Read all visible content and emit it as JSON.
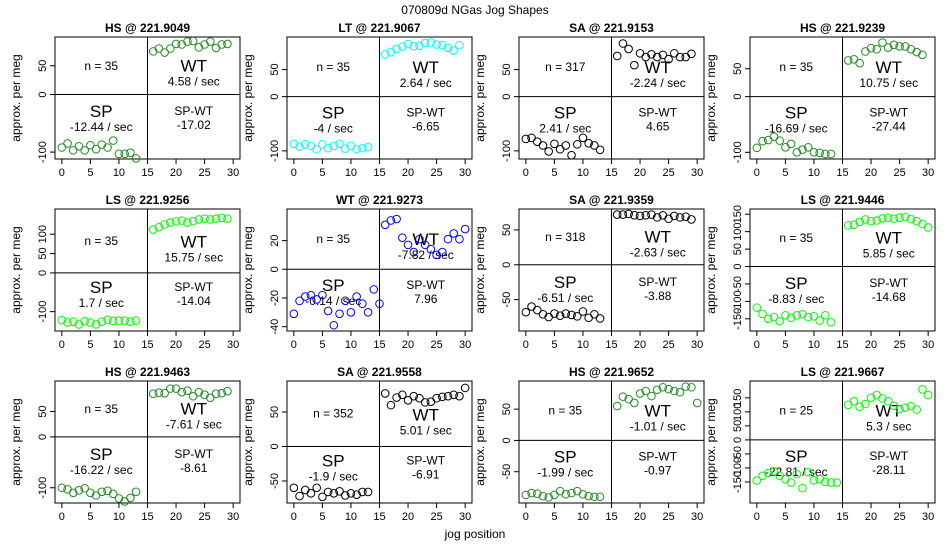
{
  "figure": {
    "title": "070809d   NGas Jog Shapes",
    "xlabel": "jog position",
    "ylabel": "approx. per meg",
    "xticks": [
      0,
      5,
      10,
      15,
      20,
      25,
      30
    ],
    "sp_label": "SP",
    "wt_label": "WT",
    "diff_label": "SP-WT"
  },
  "chart_data": [
    {
      "type": "scatter",
      "title": "HS @ 221.9049",
      "color": "#228b22",
      "n": "n = 35",
      "sp_rate": "-12.44 / sec",
      "wt_rate": "4.58 / sec",
      "diff": "-17.02",
      "ylim": [
        -112,
        100
      ],
      "yticks": [
        -100,
        0,
        50
      ],
      "sp": [
        -92,
        -85,
        -97,
        -90,
        -97,
        -88,
        -95,
        -87,
        -92,
        -80,
        -103,
        -103,
        -101,
        -111
      ],
      "wt": [
        75,
        80,
        73,
        80,
        88,
        87,
        92,
        93,
        82,
        87,
        92,
        81,
        87,
        88
      ]
    },
    {
      "type": "scatter",
      "title": "LT @ 221.9067",
      "color": "#00ffff",
      "n": "n = 35",
      "sp_rate": "-4 / sec",
      "wt_rate": "2.64 / sec",
      "diff": "-6.65",
      "ylim": [
        -115,
        110
      ],
      "yticks": [
        -100,
        0,
        50
      ],
      "sp": [
        -87,
        -92,
        -88,
        -91,
        -97,
        -88,
        -95,
        -91,
        -87,
        -96,
        -91,
        -97,
        -95,
        -93
      ],
      "wt": [
        78,
        82,
        88,
        92,
        97,
        93,
        94,
        99,
        100,
        96,
        95,
        90,
        85,
        95
      ]
    },
    {
      "type": "scatter",
      "title": "SA @ 221.9153",
      "color": "#000000",
      "n": "n = 317",
      "sp_rate": "2.41 / sec",
      "wt_rate": "-2.24 / sec",
      "diff": "4.65",
      "ylim": [
        -115,
        110
      ],
      "yticks": [
        -100,
        0,
        50
      ],
      "sp": [
        -78,
        -76,
        -83,
        -90,
        -101,
        -87,
        -97,
        -90,
        -108,
        -88,
        -76,
        -86,
        -90,
        -98
      ],
      "wt": [
        75,
        98,
        88,
        58,
        80,
        73,
        78,
        73,
        77,
        69,
        80,
        73,
        73,
        79
      ]
    },
    {
      "type": "scatter",
      "title": "HS @ 221.9239",
      "color": "#228b22",
      "n": "n = 35",
      "sp_rate": "-16.69 / sec",
      "wt_rate": "10.75 / sec",
      "diff": "-27.44",
      "ylim": [
        -112,
        107
      ],
      "yticks": [
        -100,
        0,
        50
      ],
      "sp": [
        -92,
        -80,
        -78,
        -72,
        -79,
        -91,
        -85,
        -100,
        -95,
        -91,
        -100,
        -101,
        -103,
        -103
      ],
      "wt": [
        65,
        67,
        60,
        81,
        87,
        85,
        97,
        88,
        93,
        90,
        90,
        85,
        80,
        75
      ]
    },
    {
      "type": "scatter",
      "title": "LS @ 221.9256",
      "color": "#00ff00",
      "n": "n = 35",
      "sp_rate": "1.7 / sec",
      "wt_rate": "15.75 / sec",
      "diff": "-14.04",
      "ylim": [
        -150,
        165
      ],
      "yticks": [
        -100,
        0,
        50,
        100
      ],
      "sp": [
        -122,
        -128,
        -126,
        -133,
        -125,
        -128,
        -133,
        -126,
        -121,
        -124,
        -123,
        -123,
        -126,
        -123
      ],
      "wt": [
        112,
        118,
        125,
        130,
        133,
        135,
        130,
        134,
        138,
        140,
        138,
        140,
        142,
        140
      ]
    },
    {
      "type": "scatter",
      "title": "WT @ 221.9273",
      "color": "#0000ff",
      "n": "n = 35",
      "sp_rate": "-0.14 / sec",
      "wt_rate": "-7.82 / sec",
      "diff": "7.96",
      "ylim": [
        -43,
        42
      ],
      "yticks": [
        -40,
        -20,
        0,
        20
      ],
      "sp": [
        -31,
        -22,
        -19,
        -18,
        -21,
        -18,
        -29,
        -39,
        -31,
        -22,
        -30,
        -19,
        -24,
        -30,
        -14,
        -24
      ],
      "wt": [
        31,
        34,
        35,
        22,
        17,
        12,
        21,
        17,
        14,
        10,
        12,
        21,
        25,
        21,
        28
      ]
    },
    {
      "type": "scatter",
      "title": "SA @ 221.9359",
      "color": "#000000",
      "n": "n = 318",
      "sp_rate": "-6.51 / sec",
      "wt_rate": "-2.63 / sec",
      "diff": "-3.88",
      "ylim": [
        -95,
        80
      ],
      "yticks": [
        -50,
        0,
        50
      ],
      "sp": [
        -68,
        -60,
        -65,
        -71,
        -75,
        -70,
        -73,
        -70,
        -72,
        -74,
        -67,
        -76,
        -71,
        -77
      ],
      "wt": [
        72,
        72,
        73,
        71,
        70,
        71,
        72,
        68,
        71,
        66,
        70,
        68,
        69,
        65
      ]
    },
    {
      "type": "scatter",
      "title": "LS @ 221.9446",
      "color": "#00ff00",
      "n": "n = 35",
      "sp_rate": "-8.83 / sec",
      "wt_rate": "5.85 / sec",
      "diff": "-14.68",
      "ylim": [
        -185,
        165
      ],
      "yticks": [
        -150,
        -100,
        -50,
        0,
        50,
        100,
        150
      ],
      "sp": [
        -118,
        -136,
        -150,
        -145,
        -157,
        -140,
        -147,
        -140,
        -137,
        -145,
        -143,
        -155,
        -140,
        -160
      ],
      "wt": [
        118,
        120,
        128,
        135,
        130,
        132,
        138,
        140,
        137,
        140,
        142,
        136,
        130,
        122,
        112
      ]
    },
    {
      "type": "scatter",
      "title": "HS @ 221.9463",
      "color": "#228b22",
      "n": "n = 35",
      "sp_rate": "-16.22 / sec",
      "wt_rate": "-7.61 / sec",
      "diff": "-8.61",
      "ylim": [
        -130,
        110
      ],
      "yticks": [
        -100,
        0,
        50
      ],
      "sp": [
        -100,
        -103,
        -110,
        -105,
        -101,
        -110,
        -115,
        -108,
        -106,
        -112,
        -121,
        -127,
        -120,
        -108
      ],
      "wt": [
        85,
        87,
        86,
        95,
        95,
        88,
        91,
        80,
        88,
        83,
        77,
        85,
        86,
        90
      ]
    },
    {
      "type": "scatter",
      "title": "SA @ 221.9558",
      "color": "#000000",
      "n": "n = 352",
      "sp_rate": "-1.9 / sec",
      "wt_rate": "5.01 / sec",
      "diff": "-6.91",
      "ylim": [
        -82,
        95
      ],
      "yticks": [
        -50,
        0,
        50
      ],
      "sp": [
        -60,
        -72,
        -63,
        -68,
        -60,
        -73,
        -66,
        -68,
        -65,
        -71,
        -68,
        -70,
        -66,
        -66
      ],
      "wt": [
        77,
        60,
        71,
        75,
        67,
        73,
        70,
        64,
        65,
        70,
        72,
        73,
        75,
        73,
        85
      ]
    },
    {
      "type": "scatter",
      "title": "HS @ 221.9652",
      "color": "#228b22",
      "n": "n = 35",
      "sp_rate": "-1.99 / sec",
      "wt_rate": "-1.01 / sec",
      "diff": "-0.97",
      "ylim": [
        -100,
        95
      ],
      "yticks": [
        -50,
        0,
        50
      ],
      "sp": [
        -87,
        -84,
        -85,
        -89,
        -91,
        -87,
        -81,
        -86,
        -84,
        -81,
        -86,
        -89,
        -90,
        -90
      ],
      "wt": [
        55,
        70,
        66,
        60,
        75,
        79,
        71,
        81,
        85,
        82,
        79,
        77,
        86,
        85,
        60
      ]
    },
    {
      "type": "scatter",
      "title": "LS @ 221.9667",
      "color": "#00ff00",
      "n": "n = 25",
      "sp_rate": "-22.81 / sec",
      "wt_rate": "5.3 / sec",
      "diff": "-28.11",
      "ylim": [
        -225,
        210
      ],
      "yticks": [
        -150,
        -100,
        -50,
        0,
        50,
        100,
        150
      ],
      "sp": [
        -145,
        -128,
        -118,
        -112,
        -128,
        -140,
        -152,
        -122,
        -172,
        -115,
        -144,
        -140,
        -150,
        -152,
        -152
      ],
      "wt": [
        125,
        138,
        118,
        128,
        150,
        160,
        148,
        138,
        122,
        110,
        115,
        120,
        108,
        180,
        160
      ]
    }
  ]
}
